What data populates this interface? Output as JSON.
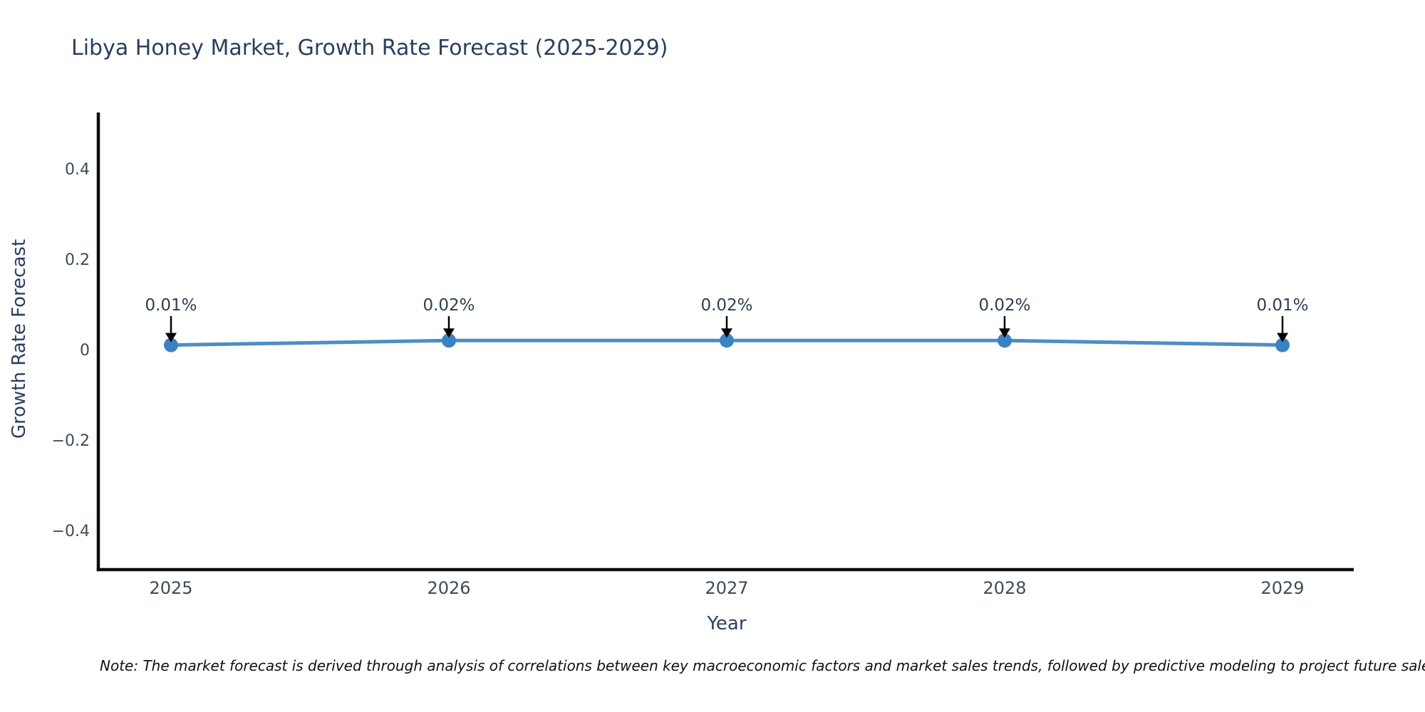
{
  "page": {
    "background": "#ffffff"
  },
  "chart_data": {
    "type": "line",
    "title": "Libya Honey Market, Growth Rate Forecast (2025-2029)",
    "xlabel": "Year",
    "ylabel": "Growth Rate Forecast",
    "categories": [
      "2025",
      "2026",
      "2027",
      "2028",
      "2029"
    ],
    "values": [
      0.01,
      0.02,
      0.02,
      0.02,
      0.01
    ],
    "point_labels": [
      "0.01%",
      "0.02%",
      "0.02%",
      "0.02%",
      "0.01%"
    ],
    "ytick_values": [
      0.4,
      0.2,
      0,
      -0.2,
      -0.4
    ],
    "ytick_labels": [
      "0.4",
      "0.2",
      "0",
      "−0.2",
      "−0.4"
    ],
    "ylim": [
      -0.49,
      0.52
    ],
    "grid": false,
    "legend": false,
    "line_color": "#4d8ec4",
    "marker_color": "#3b82c4",
    "axis_color": "#0d0d0d",
    "arrow_color": "#000000",
    "title_color": "#2a3f5f",
    "tick_color": "#3f4a58",
    "note": "Note: The market forecast is derived through analysis of correlations between key macroeconomic factors and market sales trends, followed by predictive modeling to project future sales"
  }
}
